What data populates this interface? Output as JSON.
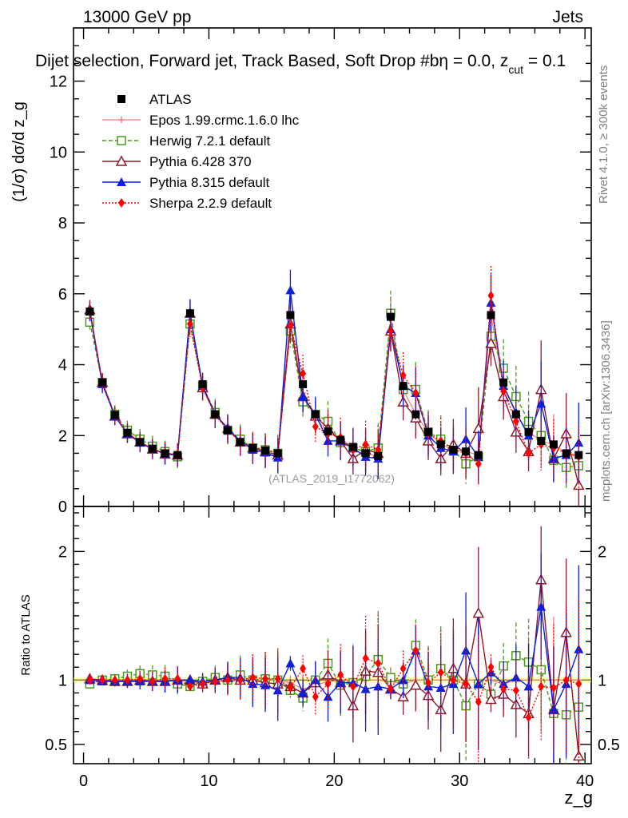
{
  "header": {
    "left": "13000 GeV pp",
    "right": "Jets",
    "title": "Dijet selection, Forward jet, Track Based, Soft Drop #b",
    "title_tail": "η = 0.0, z",
    "title_sub": "cut",
    "title_end": " = 0.1"
  },
  "side": {
    "rivet": "Rivet 4.1.0, ≥ 300k events",
    "mcplots": "mcplots.cern.ch [arXiv:1306.3436]"
  },
  "watermark": "(ATLAS_2019_I1772062)",
  "colors": {
    "atlas": "#000000",
    "epos": "#f08080",
    "herwig": "#4a9a1c",
    "pythia6": "#8b1a2c",
    "pythia8": "#0a1ee0",
    "sherpa": "#ff0000"
  },
  "chart_data": [
    {
      "type": "line",
      "title": "Dijet selection, Forward jet, Track Based, Soft Drop #b η = 0.0, z_cut = 0.1",
      "ylabel": "(1/σ) dσ/d z_g",
      "ylim": [
        0,
        13.5
      ],
      "xlim": [
        -0.8,
        40.5
      ],
      "yticks": [
        0,
        2,
        4,
        6,
        8,
        10,
        12
      ],
      "ytick_labels": [
        "0",
        "2",
        "4",
        "6",
        "8",
        "10",
        "12"
      ],
      "x": [
        0.5,
        1.5,
        2.5,
        3.5,
        4.5,
        5.5,
        6.5,
        7.5,
        8.5,
        9.5,
        10.5,
        11.5,
        12.5,
        13.5,
        14.5,
        15.5,
        16.5,
        17.5,
        18.5,
        19.5,
        20.5,
        21.5,
        22.5,
        23.5,
        24.5,
        25.5,
        26.5,
        27.5,
        28.5,
        29.5,
        30.5,
        31.5,
        32.5,
        33.5,
        34.5,
        35.5,
        36.5,
        37.5,
        38.5,
        39.5
      ],
      "series": [
        {
          "name": "ATLAS",
          "key": "atlas",
          "values": [
            5.5,
            3.5,
            2.58,
            2.08,
            1.82,
            1.63,
            1.5,
            1.45,
            5.45,
            3.45,
            2.6,
            2.15,
            1.82,
            1.65,
            1.58,
            1.5,
            5.4,
            3.45,
            2.6,
            2.12,
            1.88,
            1.68,
            1.5,
            1.42,
            5.35,
            3.4,
            2.6,
            2.1,
            1.75,
            1.6,
            1.55,
            1.45,
            5.4,
            3.5,
            2.6,
            2.1,
            1.85,
            1.75,
            1.5,
            1.45
          ]
        },
        {
          "name": "Epos 1.99.crmc.1.6.0 lhc",
          "key": "epos",
          "values": [
            5.45,
            3.5,
            2.55,
            2.08,
            1.82,
            1.62,
            1.5,
            1.45,
            5.4,
            3.4,
            2.6,
            2.15,
            1.82,
            1.65,
            1.58,
            1.5,
            5.3,
            3.2,
            2.5,
            2.1,
            1.88,
            1.68,
            1.5,
            1.42,
            5.3,
            3.3,
            2.6,
            2.1,
            1.75,
            1.6,
            1.55,
            1.45,
            5.4,
            3.4,
            2.6,
            2.1,
            1.85,
            1.75,
            1.5,
            1.45
          ]
        },
        {
          "name": "Herwig 7.2.1 default",
          "key": "herwig",
          "values": [
            5.2,
            3.5,
            2.6,
            2.15,
            1.9,
            1.7,
            1.55,
            1.4,
            5.15,
            3.4,
            2.65,
            2.15,
            1.9,
            1.65,
            1.6,
            1.5,
            4.95,
            2.95,
            2.6,
            2.4,
            1.8,
            1.65,
            1.55,
            1.65,
            5.45,
            3.3,
            3.3,
            2.1,
            1.9,
            1.6,
            1.2,
            1.4,
            4.8,
            3.9,
            3.1,
            2.4,
            2.0,
            1.3,
            1.1,
            1.15
          ]
        },
        {
          "name": "Pythia 6.428 370",
          "key": "pythia6",
          "values": [
            5.55,
            3.5,
            2.55,
            2.05,
            1.82,
            1.62,
            1.48,
            1.45,
            5.45,
            3.35,
            2.6,
            2.2,
            1.82,
            1.65,
            1.55,
            1.45,
            5.15,
            3.1,
            2.55,
            2.2,
            1.85,
            1.35,
            1.6,
            1.5,
            4.95,
            2.95,
            2.5,
            1.85,
            1.35,
            1.75,
            1.5,
            2.2,
            4.6,
            3.1,
            2.1,
            1.55,
            3.3,
            1.35,
            2.05,
            0.6
          ]
        },
        {
          "name": "Pythia 8.315 default",
          "key": "pythia8",
          "values": [
            5.5,
            3.45,
            2.55,
            2.05,
            1.8,
            1.62,
            1.48,
            1.45,
            5.45,
            3.4,
            2.6,
            2.2,
            1.85,
            1.6,
            1.52,
            1.38,
            6.1,
            3.1,
            2.6,
            1.85,
            1.85,
            1.65,
            1.4,
            1.35,
            5.0,
            3.4,
            3.2,
            2.0,
            1.65,
            1.55,
            1.9,
            1.4,
            5.75,
            3.4,
            2.65,
            2.0,
            2.9,
            1.35,
            1.45,
            1.8
          ]
        },
        {
          "name": "Sherpa 2.2.9 default",
          "key": "sherpa",
          "values": [
            5.5,
            3.5,
            2.58,
            2.08,
            1.83,
            1.62,
            1.52,
            1.46,
            5.15,
            3.35,
            2.58,
            2.15,
            1.82,
            1.68,
            1.6,
            1.52,
            5.1,
            3.75,
            2.25,
            2.05,
            1.95,
            1.6,
            1.75,
            1.6,
            4.95,
            3.7,
            3.2,
            2.05,
            1.85,
            1.6,
            1.5,
            1.2,
            5.95,
            3.25,
            2.4,
            1.5,
            1.75,
            1.65,
            1.5,
            1.4
          ]
        }
      ],
      "legend_placement": "top-left"
    },
    {
      "type": "line",
      "xlabel": "z_g",
      "ylabel": "Ratio to ATLAS",
      "ylim": [
        0.35,
        2.35
      ],
      "xlim": [
        -0.8,
        40.5
      ],
      "xticks": [
        0,
        10,
        20,
        30,
        40
      ],
      "xtick_labels": [
        "0",
        "10",
        "20",
        "30",
        "40"
      ],
      "yticks": [
        0.5,
        1,
        2
      ],
      "ytick_labels": [
        "0.5",
        "1",
        "2"
      ],
      "x": [
        0.5,
        1.5,
        2.5,
        3.5,
        4.5,
        5.5,
        6.5,
        7.5,
        8.5,
        9.5,
        10.5,
        11.5,
        12.5,
        13.5,
        14.5,
        15.5,
        16.5,
        17.5,
        18.5,
        19.5,
        20.5,
        21.5,
        22.5,
        23.5,
        24.5,
        25.5,
        26.5,
        27.5,
        28.5,
        29.5,
        30.5,
        31.5,
        32.5,
        33.5,
        34.5,
        35.5,
        36.5,
        37.5,
        38.5,
        39.5
      ],
      "series": [
        {
          "name": "Epos",
          "key": "epos",
          "values": [
            1.0,
            1.0,
            0.99,
            1.0,
            1.0,
            0.99,
            1.0,
            1.0,
            0.99,
            0.99,
            1.0,
            1.0,
            1.0,
            1.0,
            1.0,
            1.0,
            0.98,
            0.93,
            0.96,
            0.99,
            1.0,
            1.0,
            1.0,
            1.0,
            0.99,
            0.97,
            1.0,
            1.0,
            1.0,
            1.0,
            1.0,
            1.0,
            1.0,
            0.97,
            1.0,
            1.0,
            1.0,
            1.0,
            1.0,
            1.0
          ]
        },
        {
          "name": "Herwig",
          "key": "herwig",
          "values": [
            0.97,
            1.0,
            1.01,
            1.03,
            1.05,
            1.04,
            1.03,
            0.97,
            0.95,
            0.99,
            1.02,
            1.0,
            1.04,
            1.0,
            1.01,
            1.0,
            0.92,
            0.86,
            1.0,
            1.13,
            0.96,
            0.98,
            1.03,
            1.16,
            1.02,
            0.97,
            1.27,
            1.0,
            1.09,
            1.0,
            0.8,
            0.97,
            0.89,
            1.11,
            1.19,
            1.14,
            1.08,
            0.74,
            0.73,
            0.79
          ]
        },
        {
          "name": "Pythia 6",
          "key": "pythia6",
          "values": [
            1.01,
            1.0,
            0.99,
            0.99,
            1.0,
            0.99,
            0.99,
            1.0,
            1.0,
            0.97,
            1.0,
            1.02,
            1.0,
            1.0,
            0.98,
            0.97,
            0.95,
            0.9,
            0.98,
            1.04,
            0.98,
            0.8,
            1.07,
            1.06,
            0.93,
            0.87,
            0.96,
            0.88,
            0.77,
            1.09,
            0.97,
            1.52,
            0.85,
            0.89,
            0.81,
            0.74,
            1.78,
            0.77,
            1.37,
            0.41
          ]
        },
        {
          "name": "Pythia 8",
          "key": "pythia8",
          "values": [
            1.0,
            0.99,
            0.99,
            0.99,
            0.99,
            0.99,
            0.99,
            1.0,
            1.0,
            0.99,
            1.0,
            1.02,
            1.02,
            0.97,
            0.96,
            0.92,
            1.13,
            0.9,
            1.0,
            0.87,
            0.98,
            0.98,
            0.93,
            0.95,
            0.93,
            1.0,
            1.23,
            0.95,
            0.94,
            0.97,
            1.23,
            0.97,
            1.06,
            0.97,
            1.02,
            0.95,
            1.57,
            0.77,
            0.97,
            1.24
          ]
        },
        {
          "name": "Sherpa",
          "key": "sherpa",
          "values": [
            1.0,
            1.0,
            1.0,
            1.0,
            1.01,
            0.99,
            1.01,
            1.01,
            0.95,
            0.97,
            0.99,
            1.0,
            1.0,
            1.02,
            1.01,
            1.01,
            0.94,
            1.09,
            0.87,
            0.97,
            1.04,
            0.95,
            1.17,
            1.13,
            0.93,
            1.09,
            1.23,
            0.98,
            1.06,
            1.0,
            0.97,
            0.83,
            1.1,
            0.93,
            0.92,
            0.71,
            0.95,
            0.94,
            1.0,
            0.97
          ]
        }
      ]
    }
  ],
  "legend": [
    {
      "label": "ATLAS",
      "key": "atlas"
    },
    {
      "label": "Epos 1.99.crmc.1.6.0 lhc",
      "key": "epos"
    },
    {
      "label": "Herwig 7.2.1 default",
      "key": "herwig"
    },
    {
      "label": "Pythia 6.428 370",
      "key": "pythia6"
    },
    {
      "label": "Pythia 8.315 default",
      "key": "pythia8"
    },
    {
      "label": "Sherpa 2.2.9 default",
      "key": "sherpa"
    }
  ]
}
